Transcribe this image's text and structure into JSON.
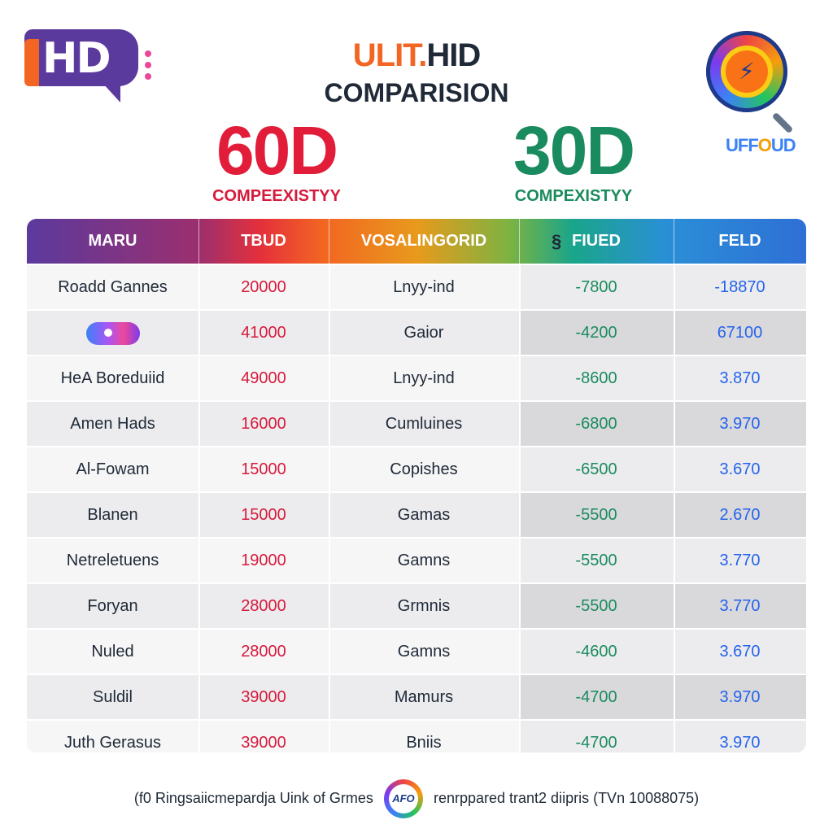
{
  "header": {
    "logo_left_text": "HD",
    "title_part1": "ULIT.",
    "title_part2": "HID",
    "subtitle": "COMPARISION",
    "logo_right_text_a": "UFF",
    "logo_right_text_b": "O",
    "logo_right_text_c": "UD"
  },
  "highlights": {
    "left": {
      "value": "60D",
      "caption": "COMPEEXISTYY"
    },
    "right": {
      "value": "30D",
      "caption": "COMPEXISTYY"
    }
  },
  "table": {
    "columns": [
      "MARU",
      "TBUD",
      "VOSALINGORID",
      "FIUED",
      "FELD"
    ],
    "column_mark": "§",
    "rows": [
      {
        "name": "Roadd Gannes",
        "tbud": "20000",
        "genre": "Lnyy-ind",
        "fiued": "-7800",
        "feld": "-18870"
      },
      {
        "name": "",
        "icon": "gamepad-icon",
        "tbud": "41000",
        "genre": "Gaior",
        "fiued": "-4200",
        "feld": "67100"
      },
      {
        "name": "HeA Boreduiid",
        "tbud": "49000",
        "genre": "Lnyy-ind",
        "fiued": "-8600",
        "feld": "3.870"
      },
      {
        "name": "Amen Hads",
        "tbud": "16000",
        "genre": "Cumluines",
        "fiued": "-6800",
        "feld": "3.970"
      },
      {
        "name": "Al-Fowam",
        "tbud": "15000",
        "genre": "Copishes",
        "fiued": "-6500",
        "feld": "3.670"
      },
      {
        "name": "Blanen",
        "tbud": "15000",
        "genre": "Gamas",
        "fiued": "-5500",
        "feld": "2.670"
      },
      {
        "name": "Netreletuens",
        "tbud": "19000",
        "genre": "Gamns",
        "fiued": "-5500",
        "feld": "3.770"
      },
      {
        "name": "Foryan",
        "tbud": "28000",
        "genre": "Grmnis",
        "fiued": "-5500",
        "feld": "3.770"
      },
      {
        "name": "Nuled",
        "tbud": "28000",
        "genre": "Gamns",
        "fiued": "-4600",
        "feld": "3.670"
      },
      {
        "name": "Suldil",
        "tbud": "39000",
        "genre": "Mamurs",
        "fiued": "-4700",
        "feld": "3.970"
      },
      {
        "name": "Juth Gerasus",
        "tbud": "39000",
        "genre": "Bniis",
        "fiued": "-4700",
        "feld": "3.970"
      }
    ]
  },
  "footer": {
    "text_left": "(f0 Ringsaiicmepardja Uink of Grmes",
    "badge_text": "AFO",
    "text_right": "renrppared trant2 diipris (TVn 10088075)"
  },
  "colors": {
    "accent_red": "#d61a3c",
    "accent_green": "#1a8b5e",
    "accent_blue": "#2563eb",
    "accent_orange": "#f26522",
    "brand_purple": "#5b3a9e"
  }
}
